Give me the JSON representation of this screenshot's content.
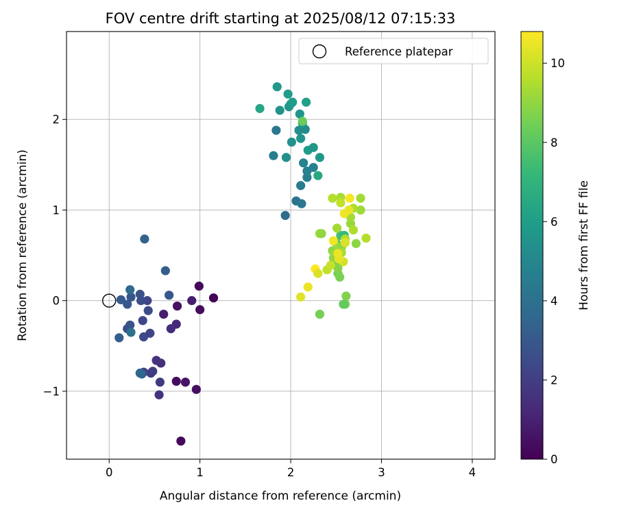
{
  "chart_data": {
    "type": "scatter",
    "title": "FOV centre drift starting at 2025/08/12 07:15:33",
    "xlabel": "Angular distance from reference (arcmin)",
    "ylabel": "Rotation from reference (arcmin)",
    "xlim": [
      -0.47,
      4.25
    ],
    "ylim": [
      -1.75,
      2.97
    ],
    "xticks": [
      0,
      1,
      2,
      3,
      4
    ],
    "yticks": [
      -1,
      0,
      1,
      2
    ],
    "grid": true,
    "legend": {
      "placement": "top-right",
      "entries": [
        "Reference platepar"
      ]
    },
    "reference_point": {
      "label": "Reference platepar",
      "x": 0,
      "y": 0
    },
    "colorbar": {
      "label": "Hours from first FF file",
      "colormap": "viridis",
      "range": [
        0,
        10.8
      ],
      "ticks": [
        0,
        2,
        4,
        6,
        8,
        10
      ]
    },
    "colormap_stops": [
      "#440154",
      "#482878",
      "#3e4989",
      "#31688e",
      "#26828e",
      "#1f9e89",
      "#35b779",
      "#6ece58",
      "#b5de2b",
      "#fde725"
    ],
    "points": [
      {
        "x": 1.15,
        "y": 0.03,
        "h": 0.1
      },
      {
        "x": 0.99,
        "y": 0.16,
        "h": 0.2
      },
      {
        "x": 1.0,
        "y": -0.1,
        "h": 0.3
      },
      {
        "x": 0.96,
        "y": -0.98,
        "h": 0.4
      },
      {
        "x": 0.79,
        "y": -1.55,
        "h": 0.2
      },
      {
        "x": 0.74,
        "y": -0.89,
        "h": 0.3
      },
      {
        "x": 0.75,
        "y": -0.06,
        "h": 0.5
      },
      {
        "x": 0.84,
        "y": -0.9,
        "h": 0.6
      },
      {
        "x": 0.91,
        "y": 0.0,
        "h": 0.9
      },
      {
        "x": 0.6,
        "y": -0.15,
        "h": 0.9
      },
      {
        "x": 0.74,
        "y": -0.26,
        "h": 1.2
      },
      {
        "x": 0.68,
        "y": -0.31,
        "h": 1.4
      },
      {
        "x": 0.57,
        "y": -0.69,
        "h": 1.5
      },
      {
        "x": 0.52,
        "y": -0.66,
        "h": 1.6
      },
      {
        "x": 0.55,
        "y": -1.04,
        "h": 1.6
      },
      {
        "x": 0.56,
        "y": -0.9,
        "h": 1.8
      },
      {
        "x": 0.46,
        "y": -0.8,
        "h": 1.9
      },
      {
        "x": 0.48,
        "y": -0.78,
        "h": 2.0
      },
      {
        "x": 0.38,
        "y": -0.79,
        "h": 2.1
      },
      {
        "x": 0.37,
        "y": -0.22,
        "h": 2.3
      },
      {
        "x": 0.38,
        "y": -0.4,
        "h": 2.4
      },
      {
        "x": 0.45,
        "y": -0.36,
        "h": 2.2
      },
      {
        "x": 0.43,
        "y": -0.11,
        "h": 2.5
      },
      {
        "x": 0.42,
        "y": 0.0,
        "h": 2.3
      },
      {
        "x": 0.35,
        "y": 0.0,
        "h": 2.6
      },
      {
        "x": 0.34,
        "y": 0.07,
        "h": 2.7
      },
      {
        "x": 0.2,
        "y": -0.31,
        "h": 2.6
      },
      {
        "x": 0.23,
        "y": -0.27,
        "h": 2.8
      },
      {
        "x": 0.24,
        "y": 0.04,
        "h": 2.9
      },
      {
        "x": 0.2,
        "y": -0.04,
        "h": 3.0
      },
      {
        "x": 0.13,
        "y": 0.01,
        "h": 3.1
      },
      {
        "x": 0.11,
        "y": -0.41,
        "h": 3.2
      },
      {
        "x": 0.36,
        "y": -0.81,
        "h": 3.3
      },
      {
        "x": 0.34,
        "y": -0.8,
        "h": 3.6
      },
      {
        "x": 0.39,
        "y": 0.68,
        "h": 3.4
      },
      {
        "x": 0.62,
        "y": 0.33,
        "h": 3.2
      },
      {
        "x": 0.66,
        "y": 0.06,
        "h": 3.0
      },
      {
        "x": 0.23,
        "y": 0.12,
        "h": 3.7
      },
      {
        "x": 0.24,
        "y": -0.35,
        "h": 3.9
      },
      {
        "x": 1.94,
        "y": 0.94,
        "h": 3.8
      },
      {
        "x": 2.06,
        "y": 1.1,
        "h": 4.1
      },
      {
        "x": 2.12,
        "y": 1.07,
        "h": 4.3
      },
      {
        "x": 2.11,
        "y": 1.27,
        "h": 4.5
      },
      {
        "x": 2.18,
        "y": 1.36,
        "h": 4.6
      },
      {
        "x": 2.18,
        "y": 1.43,
        "h": 4.8
      },
      {
        "x": 2.14,
        "y": 1.52,
        "h": 4.9
      },
      {
        "x": 1.81,
        "y": 1.6,
        "h": 4.6
      },
      {
        "x": 1.84,
        "y": 1.88,
        "h": 4.3
      },
      {
        "x": 2.25,
        "y": 1.47,
        "h": 4.7
      },
      {
        "x": 1.95,
        "y": 1.58,
        "h": 5.4
      },
      {
        "x": 2.01,
        "y": 1.75,
        "h": 5.5
      },
      {
        "x": 2.11,
        "y": 1.79,
        "h": 5.6
      },
      {
        "x": 2.09,
        "y": 1.88,
        "h": 5.3
      },
      {
        "x": 2.16,
        "y": 1.89,
        "h": 5.2
      },
      {
        "x": 2.13,
        "y": 1.96,
        "h": 5.8
      },
      {
        "x": 2.1,
        "y": 2.06,
        "h": 5.6
      },
      {
        "x": 2.19,
        "y": 1.66,
        "h": 5.9
      },
      {
        "x": 2.25,
        "y": 1.69,
        "h": 5.7
      },
      {
        "x": 2.32,
        "y": 1.58,
        "h": 5.8
      },
      {
        "x": 1.88,
        "y": 2.1,
        "h": 5.5
      },
      {
        "x": 1.98,
        "y": 2.14,
        "h": 5.6
      },
      {
        "x": 2.0,
        "y": 2.17,
        "h": 5.8
      },
      {
        "x": 2.02,
        "y": 2.19,
        "h": 6.0
      },
      {
        "x": 1.97,
        "y": 2.28,
        "h": 5.9
      },
      {
        "x": 1.85,
        "y": 2.36,
        "h": 5.7
      },
      {
        "x": 2.17,
        "y": 2.19,
        "h": 6.1
      },
      {
        "x": 1.66,
        "y": 2.12,
        "h": 6.4
      },
      {
        "x": 2.3,
        "y": 1.38,
        "h": 6.5
      },
      {
        "x": 2.13,
        "y": 1.98,
        "h": 8.3
      },
      {
        "x": 2.5,
        "y": 0.64,
        "h": 8.0
      },
      {
        "x": 2.5,
        "y": 0.4,
        "h": 8.3
      },
      {
        "x": 2.52,
        "y": 0.3,
        "h": 8.5
      },
      {
        "x": 2.54,
        "y": 0.26,
        "h": 8.6
      },
      {
        "x": 2.55,
        "y": 0.72,
        "h": 7.6
      },
      {
        "x": 2.59,
        "y": 0.72,
        "h": 7.2
      },
      {
        "x": 2.61,
        "y": 0.05,
        "h": 8.7
      },
      {
        "x": 2.6,
        "y": -0.04,
        "h": 8.4
      },
      {
        "x": 2.58,
        "y": -0.04,
        "h": 8.2
      },
      {
        "x": 2.32,
        "y": -0.15,
        "h": 8.5
      },
      {
        "x": 2.52,
        "y": 0.36,
        "h": 8.8
      },
      {
        "x": 2.46,
        "y": 0.55,
        "h": 8.9
      },
      {
        "x": 2.47,
        "y": 0.47,
        "h": 9.0
      },
      {
        "x": 2.48,
        "y": 0.53,
        "h": 9.1
      },
      {
        "x": 2.52,
        "y": 0.59,
        "h": 9.2
      },
      {
        "x": 2.56,
        "y": 0.59,
        "h": 9.0
      },
      {
        "x": 2.51,
        "y": 0.8,
        "h": 9.3
      },
      {
        "x": 2.32,
        "y": 0.74,
        "h": 9.2
      },
      {
        "x": 2.34,
        "y": 0.74,
        "h": 9.0
      },
      {
        "x": 2.56,
        "y": 0.53,
        "h": 9.4
      },
      {
        "x": 2.6,
        "y": 0.68,
        "h": 9.5
      },
      {
        "x": 2.66,
        "y": 0.85,
        "h": 9.1
      },
      {
        "x": 2.66,
        "y": 0.92,
        "h": 9.3
      },
      {
        "x": 2.69,
        "y": 0.78,
        "h": 9.5
      },
      {
        "x": 2.72,
        "y": 0.63,
        "h": 8.9
      },
      {
        "x": 2.77,
        "y": 1.0,
        "h": 9.2
      },
      {
        "x": 2.77,
        "y": 1.13,
        "h": 9.3
      },
      {
        "x": 2.83,
        "y": 0.69,
        "h": 9.6
      },
      {
        "x": 2.69,
        "y": 1.02,
        "h": 9.5
      },
      {
        "x": 2.55,
        "y": 1.14,
        "h": 9.4
      },
      {
        "x": 2.46,
        "y": 1.13,
        "h": 9.6
      },
      {
        "x": 2.55,
        "y": 1.08,
        "h": 9.8
      },
      {
        "x": 2.59,
        "y": 0.96,
        "h": 10.6
      },
      {
        "x": 2.64,
        "y": 1.0,
        "h": 10.5
      },
      {
        "x": 2.65,
        "y": 1.13,
        "h": 10.7
      },
      {
        "x": 2.58,
        "y": 0.43,
        "h": 10.1
      },
      {
        "x": 2.53,
        "y": 0.46,
        "h": 10.4
      },
      {
        "x": 2.47,
        "y": 0.66,
        "h": 10.6
      },
      {
        "x": 2.6,
        "y": 0.64,
        "h": 10.2
      },
      {
        "x": 2.52,
        "y": 0.52,
        "h": 10.5
      },
      {
        "x": 2.27,
        "y": 0.35,
        "h": 10.8
      },
      {
        "x": 2.3,
        "y": 0.3,
        "h": 10.2
      },
      {
        "x": 2.19,
        "y": 0.15,
        "h": 10.5
      },
      {
        "x": 2.11,
        "y": 0.04,
        "h": 10.3
      },
      {
        "x": 2.4,
        "y": 0.34,
        "h": 9.8
      },
      {
        "x": 2.44,
        "y": 0.39,
        "h": 9.9
      }
    ]
  }
}
